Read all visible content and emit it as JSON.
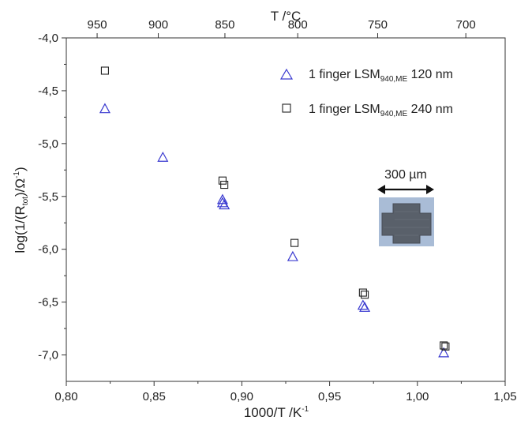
{
  "chart_data": {
    "type": "scatter",
    "xlabel": "1000/T /K",
    "xlabel_sup": "-1",
    "x2label": "T /°C",
    "ylabel": "log(1/(R",
    "ylabel_sub": "tot",
    "ylabel_mid": ")/Ω",
    "ylabel_sup": "-1",
    "ylabel_end": ")",
    "xlim": [
      0.8,
      1.05
    ],
    "ylim": [
      -7.25,
      -4.0
    ],
    "x_ticks": [
      {
        "value": 0.8,
        "label": "0,80"
      },
      {
        "value": 0.85,
        "label": "0,85"
      },
      {
        "value": 0.9,
        "label": "0,90"
      },
      {
        "value": 0.95,
        "label": "0,95"
      },
      {
        "value": 1.0,
        "label": "1,00"
      },
      {
        "value": 1.05,
        "label": "1,05"
      }
    ],
    "y_ticks": [
      {
        "value": -4.0,
        "label": "-4,0"
      },
      {
        "value": -4.5,
        "label": "-4,5"
      },
      {
        "value": -5.0,
        "label": "-5,0"
      },
      {
        "value": -5.5,
        "label": "-5,5"
      },
      {
        "value": -6.0,
        "label": "-6,0"
      },
      {
        "value": -6.5,
        "label": "-6,5"
      },
      {
        "value": -7.0,
        "label": "-7,0"
      }
    ],
    "top_ticks": [
      {
        "celsius": 950,
        "label": "950"
      },
      {
        "celsius": 900,
        "label": "900"
      },
      {
        "celsius": 850,
        "label": "850"
      },
      {
        "celsius": 800,
        "label": "800"
      },
      {
        "celsius": 750,
        "label": "750"
      },
      {
        "celsius": 700,
        "label": "700"
      }
    ],
    "series": [
      {
        "name_main": "1 finger LSM",
        "name_sub": "940,ME",
        "name_tail": " 120 nm",
        "marker": "triangle",
        "color": "#3a3ad0",
        "points": [
          {
            "x": 0.822,
            "y": -4.67
          },
          {
            "x": 0.855,
            "y": -5.13
          },
          {
            "x": 0.889,
            "y": -5.53
          },
          {
            "x": 0.889,
            "y": -5.56
          },
          {
            "x": 0.89,
            "y": -5.58
          },
          {
            "x": 0.929,
            "y": -6.07
          },
          {
            "x": 0.969,
            "y": -6.53
          },
          {
            "x": 0.97,
            "y": -6.55
          },
          {
            "x": 1.015,
            "y": -6.98
          }
        ]
      },
      {
        "name_main": "1 finger LSM",
        "name_sub": "940,ME",
        "name_tail": " 240 nm",
        "marker": "square",
        "color": "#222222",
        "points": [
          {
            "x": 0.822,
            "y": -4.31
          },
          {
            "x": 0.889,
            "y": -5.35
          },
          {
            "x": 0.89,
            "y": -5.39
          },
          {
            "x": 0.93,
            "y": -5.94
          },
          {
            "x": 0.969,
            "y": -6.41
          },
          {
            "x": 0.97,
            "y": -6.43
          },
          {
            "x": 1.015,
            "y": -6.91
          },
          {
            "x": 1.016,
            "y": -6.92
          }
        ]
      }
    ],
    "legend": {
      "position": "top-right"
    },
    "inset": {
      "scale_label": "300 µm",
      "description": "cross-shaped electrode micrograph"
    }
  }
}
